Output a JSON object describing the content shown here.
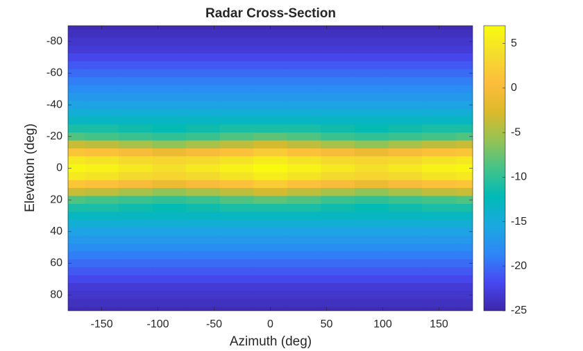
{
  "chart_data": {
    "type": "heatmap",
    "title": "Radar Cross-Section",
    "x_label": "Azimuth (deg)",
    "y_label": "Elevation (deg)",
    "x": [
      -180,
      -150,
      -120,
      -90,
      -60,
      -30,
      0,
      30,
      60,
      90,
      120,
      150,
      180
    ],
    "y": [
      -90,
      -85,
      -80,
      -75,
      -70,
      -65,
      -60,
      -55,
      -50,
      -45,
      -40,
      -35,
      -30,
      -25,
      -20,
      -15,
      -10,
      -5,
      0,
      5,
      10,
      15,
      20,
      25,
      30,
      35,
      40,
      45,
      50,
      55,
      60,
      65,
      70,
      75,
      80,
      85,
      90
    ],
    "z": [
      [
        -24.5,
        -24.5,
        -24.5,
        -24.5,
        -24.5,
        -24.5,
        -24.5,
        -24.5,
        -24.5,
        -24.5,
        -24.5,
        -24.5,
        -24.5
      ],
      [
        -24,
        -24,
        -24,
        -24,
        -24,
        -24,
        -24,
        -24,
        -24,
        -24,
        -24,
        -24,
        -24
      ],
      [
        -23.5,
        -23.5,
        -23.5,
        -23.5,
        -23.5,
        -23.5,
        -23.5,
        -23.5,
        -23.5,
        -23.5,
        -23.5,
        -23.5,
        -23.5
      ],
      [
        -23,
        -23,
        -23,
        -23,
        -23,
        -23,
        -23,
        -23,
        -23,
        -23,
        -23,
        -23,
        -23
      ],
      [
        -22,
        -22,
        -22,
        -22,
        -22,
        -22,
        -22,
        -22,
        -22,
        -22,
        -22,
        -22,
        -22
      ],
      [
        -21,
        -21,
        -21,
        -21,
        -21,
        -21,
        -21,
        -21,
        -21,
        -21,
        -21,
        -21,
        -21
      ],
      [
        -20,
        -20,
        -20,
        -20,
        -20,
        -20,
        -20,
        -20,
        -20,
        -20,
        -20,
        -20,
        -20
      ],
      [
        -19,
        -19,
        -19,
        -19,
        -19,
        -19,
        -19,
        -19,
        -19,
        -19,
        -19,
        -19,
        -19
      ],
      [
        -18,
        -18,
        -18,
        -18,
        -18,
        -18,
        -18,
        -18,
        -18,
        -18,
        -18,
        -18,
        -18
      ],
      [
        -17,
        -17,
        -17,
        -17,
        -17,
        -17,
        -17,
        -17,
        -17,
        -17,
        -17,
        -17,
        -17
      ],
      [
        -16,
        -16,
        -16,
        -16,
        -16,
        -16,
        -16,
        -16,
        -16,
        -16,
        -16,
        -16,
        -16
      ],
      [
        -14.5,
        -14.5,
        -14.5,
        -14.5,
        -14.5,
        -14.5,
        -14.5,
        -14.5,
        -14.5,
        -14.5,
        -14.5,
        -14.5,
        -14.5
      ],
      [
        -13,
        -13,
        -13,
        -13,
        -13,
        -13,
        -13,
        -13,
        -13,
        -13,
        -13,
        -13,
        -13
      ],
      [
        -11,
        -11,
        -11.5,
        -12,
        -11.5,
        -11,
        -11,
        -11,
        -11.5,
        -12,
        -11.5,
        -11,
        -11
      ],
      [
        -8.5,
        -9,
        -9.5,
        -10,
        -9.5,
        -8.5,
        -8,
        -8.5,
        -9.5,
        -10,
        -9.5,
        -9,
        -8.5
      ],
      [
        -3.5,
        -4,
        -5,
        -6,
        -5,
        -4,
        -3,
        -4,
        -5,
        -6,
        -5,
        -4,
        -3.5
      ],
      [
        1.5,
        1,
        0,
        -1,
        0,
        1,
        2,
        1,
        0,
        -1,
        0,
        1,
        1.5
      ],
      [
        5,
        4.5,
        3.5,
        3,
        3.5,
        4.5,
        5.5,
        4.5,
        3.5,
        3,
        3.5,
        4.5,
        5
      ],
      [
        6.5,
        6,
        5,
        4,
        5,
        6,
        7,
        6,
        5,
        4,
        5,
        6,
        6.5
      ],
      [
        5,
        4.5,
        3.5,
        3,
        3.5,
        4.5,
        5.5,
        4.5,
        3.5,
        3,
        3.5,
        4.5,
        5
      ],
      [
        1.5,
        1,
        0,
        -1,
        0,
        1,
        2,
        1,
        0,
        -1,
        0,
        1,
        1.5
      ],
      [
        -3.5,
        -4,
        -5,
        -6,
        -5,
        -4,
        -3,
        -4,
        -5,
        -6,
        -5,
        -4,
        -3.5
      ],
      [
        -8.5,
        -9,
        -9.5,
        -10,
        -9.5,
        -8.5,
        -8,
        -8.5,
        -9.5,
        -10,
        -9.5,
        -9,
        -8.5
      ],
      [
        -11,
        -11,
        -11.5,
        -12,
        -11.5,
        -11,
        -11,
        -11,
        -11.5,
        -12,
        -11.5,
        -11,
        -11
      ],
      [
        -13,
        -13,
        -13,
        -13,
        -13,
        -13,
        -13,
        -13,
        -13,
        -13,
        -13,
        -13,
        -13
      ],
      [
        -14.5,
        -14.5,
        -14.5,
        -14.5,
        -14.5,
        -14.5,
        -14.5,
        -14.5,
        -14.5,
        -14.5,
        -14.5,
        -14.5,
        -14.5
      ],
      [
        -16,
        -16,
        -16,
        -16,
        -16,
        -16,
        -16,
        -16,
        -16,
        -16,
        -16,
        -16,
        -16
      ],
      [
        -17,
        -17,
        -17,
        -17,
        -17,
        -17,
        -17,
        -17,
        -17,
        -17,
        -17,
        -17,
        -17
      ],
      [
        -18,
        -18,
        -18,
        -18,
        -18,
        -18,
        -18,
        -18,
        -18,
        -18,
        -18,
        -18,
        -18
      ],
      [
        -19,
        -19,
        -19,
        -19,
        -19,
        -19,
        -19,
        -19,
        -19,
        -19,
        -19,
        -19,
        -19
      ],
      [
        -20,
        -20,
        -20,
        -20,
        -20,
        -20,
        -20,
        -20,
        -20,
        -20,
        -20,
        -20,
        -20
      ],
      [
        -21,
        -21,
        -21,
        -21,
        -21,
        -21,
        -21,
        -21,
        -21,
        -21,
        -21,
        -21,
        -21
      ],
      [
        -22,
        -22,
        -22,
        -22,
        -22,
        -22,
        -22,
        -22,
        -22,
        -22,
        -22,
        -22,
        -22
      ],
      [
        -23,
        -23,
        -23,
        -23,
        -23,
        -23,
        -23,
        -23,
        -23,
        -23,
        -23,
        -23,
        -23
      ],
      [
        -23.5,
        -23.5,
        -23.5,
        -23.5,
        -23.5,
        -23.5,
        -23.5,
        -23.5,
        -23.5,
        -23.5,
        -23.5,
        -23.5,
        -23.5
      ],
      [
        -24,
        -24,
        -24,
        -24,
        -24,
        -24,
        -24,
        -24,
        -24,
        -24,
        -24,
        -24,
        -24
      ],
      [
        -24.5,
        -24.5,
        -24.5,
        -24.5,
        -24.5,
        -24.5,
        -24.5,
        -24.5,
        -24.5,
        -24.5,
        -24.5,
        -24.5,
        -24.5
      ]
    ],
    "xlim": [
      -180,
      180
    ],
    "xticks": [
      -150,
      -100,
      -50,
      0,
      50,
      100,
      150
    ],
    "ylim": [
      -90,
      90
    ],
    "y_reversed": true,
    "yticks": [
      -80,
      -60,
      -40,
      -20,
      0,
      20,
      40,
      60,
      80
    ],
    "colormap": "parula",
    "clim": [
      -25,
      7
    ],
    "cticks": [
      -25,
      -20,
      -15,
      -10,
      -5,
      0,
      5
    ]
  }
}
